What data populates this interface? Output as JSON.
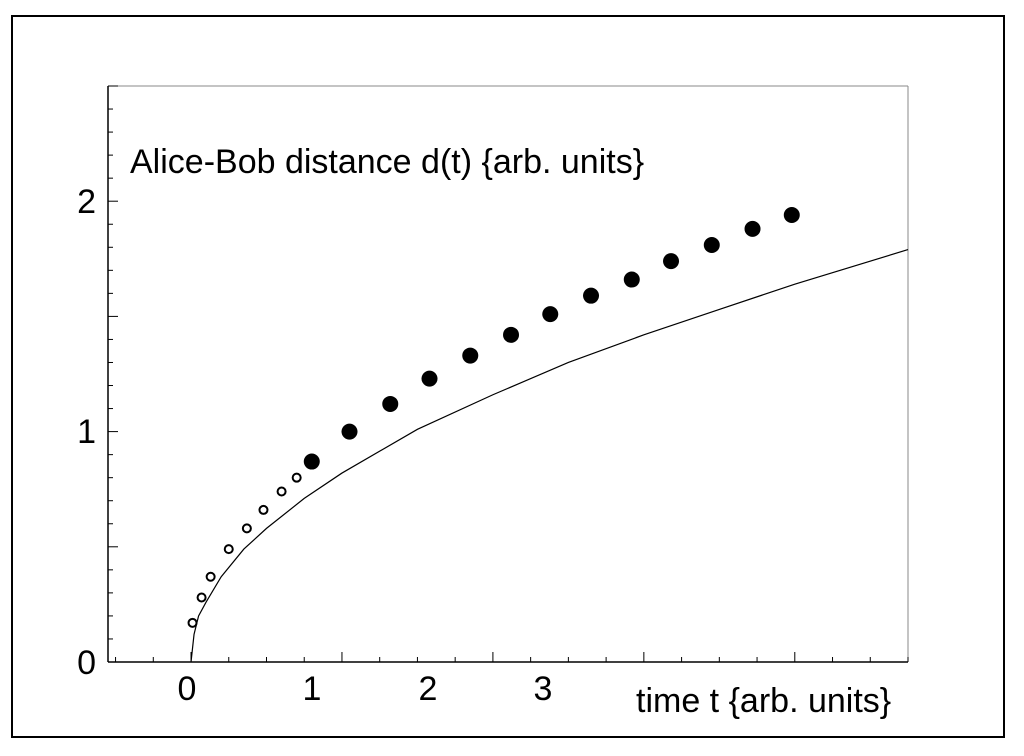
{
  "chart_data": {
    "type": "scatter",
    "title": "Alice-Bob distance d(t) {arb. units}",
    "xlabel": "time t {arb. units}",
    "ylabel": "",
    "xlim": [
      -0.55,
      4.75
    ],
    "ylim": [
      0,
      2.5
    ],
    "x_ticks": [
      "0",
      "1",
      "2",
      "3"
    ],
    "y_ticks": [
      "0",
      "1",
      "2"
    ],
    "grid": false,
    "curve": {
      "x": [
        0,
        0.02,
        0.05,
        0.1,
        0.2,
        0.35,
        0.5,
        0.75,
        1.0,
        1.5,
        2.0,
        2.5,
        3.0,
        3.5,
        4.0,
        4.75
      ],
      "y": [
        0,
        0.12,
        0.2,
        0.26,
        0.37,
        0.49,
        0.58,
        0.71,
        0.82,
        1.01,
        1.16,
        1.3,
        1.42,
        1.53,
        1.64,
        1.79
      ]
    },
    "series": [
      {
        "x": [
          0.01,
          0.07,
          0.13,
          0.25,
          0.37,
          0.48,
          0.6,
          0.7
        ],
        "y": [
          0.17,
          0.28,
          0.37,
          0.49,
          0.58,
          0.66,
          0.74,
          0.8
        ]
      },
      {
        "x": [
          0.8,
          1.05,
          1.32,
          1.58,
          1.85,
          2.12,
          2.38,
          2.65,
          2.92,
          3.18,
          3.45,
          3.72,
          3.98
        ],
        "y": [
          0.87,
          1.0,
          1.12,
          1.23,
          1.33,
          1.42,
          1.51,
          1.59,
          1.66,
          1.74,
          1.81,
          1.88,
          1.94
        ]
      }
    ]
  }
}
